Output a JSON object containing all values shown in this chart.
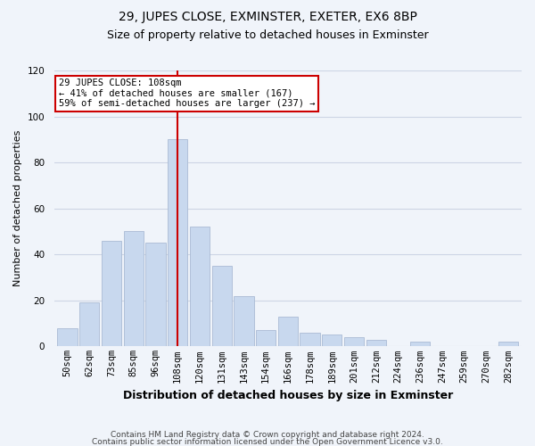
{
  "title": "29, JUPES CLOSE, EXMINSTER, EXETER, EX6 8BP",
  "subtitle": "Size of property relative to detached houses in Exminster",
  "xlabel": "Distribution of detached houses by size in Exminster",
  "ylabel": "Number of detached properties",
  "bar_labels": [
    "50sqm",
    "62sqm",
    "73sqm",
    "85sqm",
    "96sqm",
    "108sqm",
    "120sqm",
    "131sqm",
    "143sqm",
    "154sqm",
    "166sqm",
    "178sqm",
    "189sqm",
    "201sqm",
    "212sqm",
    "224sqm",
    "236sqm",
    "247sqm",
    "259sqm",
    "270sqm",
    "282sqm"
  ],
  "bar_heights": [
    8,
    19,
    46,
    50,
    45,
    90,
    52,
    35,
    22,
    7,
    13,
    6,
    5,
    4,
    3,
    0,
    2,
    0,
    0,
    0,
    2
  ],
  "bar_color": "#c8d8ee",
  "bar_edge_color": "#aabbd4",
  "vline_idx": 5,
  "vline_color": "#cc0000",
  "annotation_line1": "29 JUPES CLOSE: 108sqm",
  "annotation_line2": "← 41% of detached houses are smaller (167)",
  "annotation_line3": "59% of semi-detached houses are larger (237) →",
  "annotation_box_color": "#ffffff",
  "annotation_box_edge": "#cc0000",
  "ylim": [
    0,
    120
  ],
  "yticks": [
    0,
    20,
    40,
    60,
    80,
    100,
    120
  ],
  "footer_line1": "Contains HM Land Registry data © Crown copyright and database right 2024.",
  "footer_line2": "Contains public sector information licensed under the Open Government Licence v3.0.",
  "bg_color": "#f0f4fa",
  "grid_color": "#cdd5e5",
  "title_fontsize": 10,
  "subtitle_fontsize": 9,
  "xlabel_fontsize": 9,
  "ylabel_fontsize": 8,
  "tick_fontsize": 7.5,
  "annotation_fontsize": 7.5,
  "footer_fontsize": 6.5
}
